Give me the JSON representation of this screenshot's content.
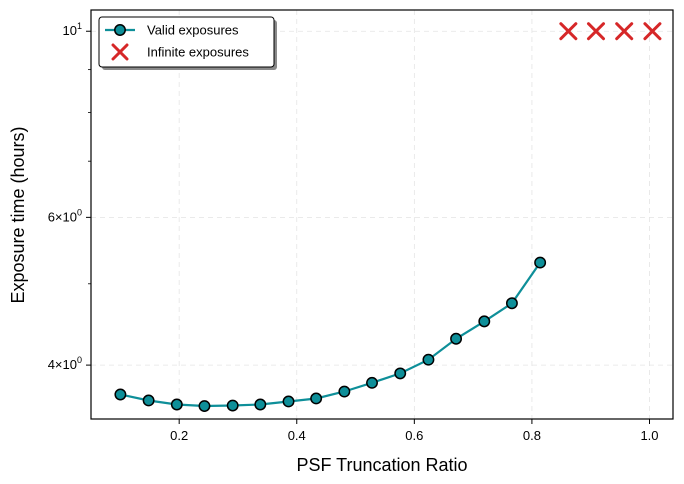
{
  "chart_data": {
    "type": "line",
    "xlabel": "PSF Truncation Ratio",
    "ylabel": "Exposure time (hours)",
    "xlim": [
      0.05,
      1.04
    ],
    "ylim": [
      3.45,
      10.6
    ],
    "y_scale": "log",
    "grid": true,
    "legend_position": "top-left",
    "x_ticks": [
      0.2,
      0.4,
      0.6,
      0.8,
      1.0
    ],
    "x_tick_labels": [
      "0.2",
      "0.4",
      "0.6",
      "0.8",
      "1.0"
    ],
    "y_ticks": [
      4,
      6,
      10
    ],
    "y_tick_labels": [
      {
        "base": "4",
        "times": "×",
        "ten": "10",
        "exp": "0"
      },
      {
        "base": "6",
        "times": "×",
        "ten": "10",
        "exp": "0"
      },
      {
        "base": "",
        "times": "",
        "ten": "10",
        "exp": "1"
      }
    ],
    "y_minor_ticks": [
      5,
      7,
      8,
      9
    ],
    "series": [
      {
        "name": "Valid exposures",
        "marker": "circle",
        "color": "#0e8f99",
        "x": [
          0.1,
          0.148,
          0.196,
          0.243,
          0.291,
          0.338,
          0.386,
          0.433,
          0.481,
          0.528,
          0.576,
          0.624,
          0.671,
          0.719,
          0.766,
          0.814
        ],
        "y": [
          3.69,
          3.63,
          3.59,
          3.575,
          3.58,
          3.59,
          3.62,
          3.65,
          3.72,
          3.81,
          3.91,
          4.06,
          4.3,
          4.51,
          4.74,
          5.3
        ]
      },
      {
        "name": "Infinite exposures",
        "marker": "x",
        "color": "#d62728",
        "x": [
          0.862,
          0.909,
          0.957,
          1.005
        ],
        "y": [
          10,
          10,
          10,
          10
        ]
      }
    ]
  }
}
